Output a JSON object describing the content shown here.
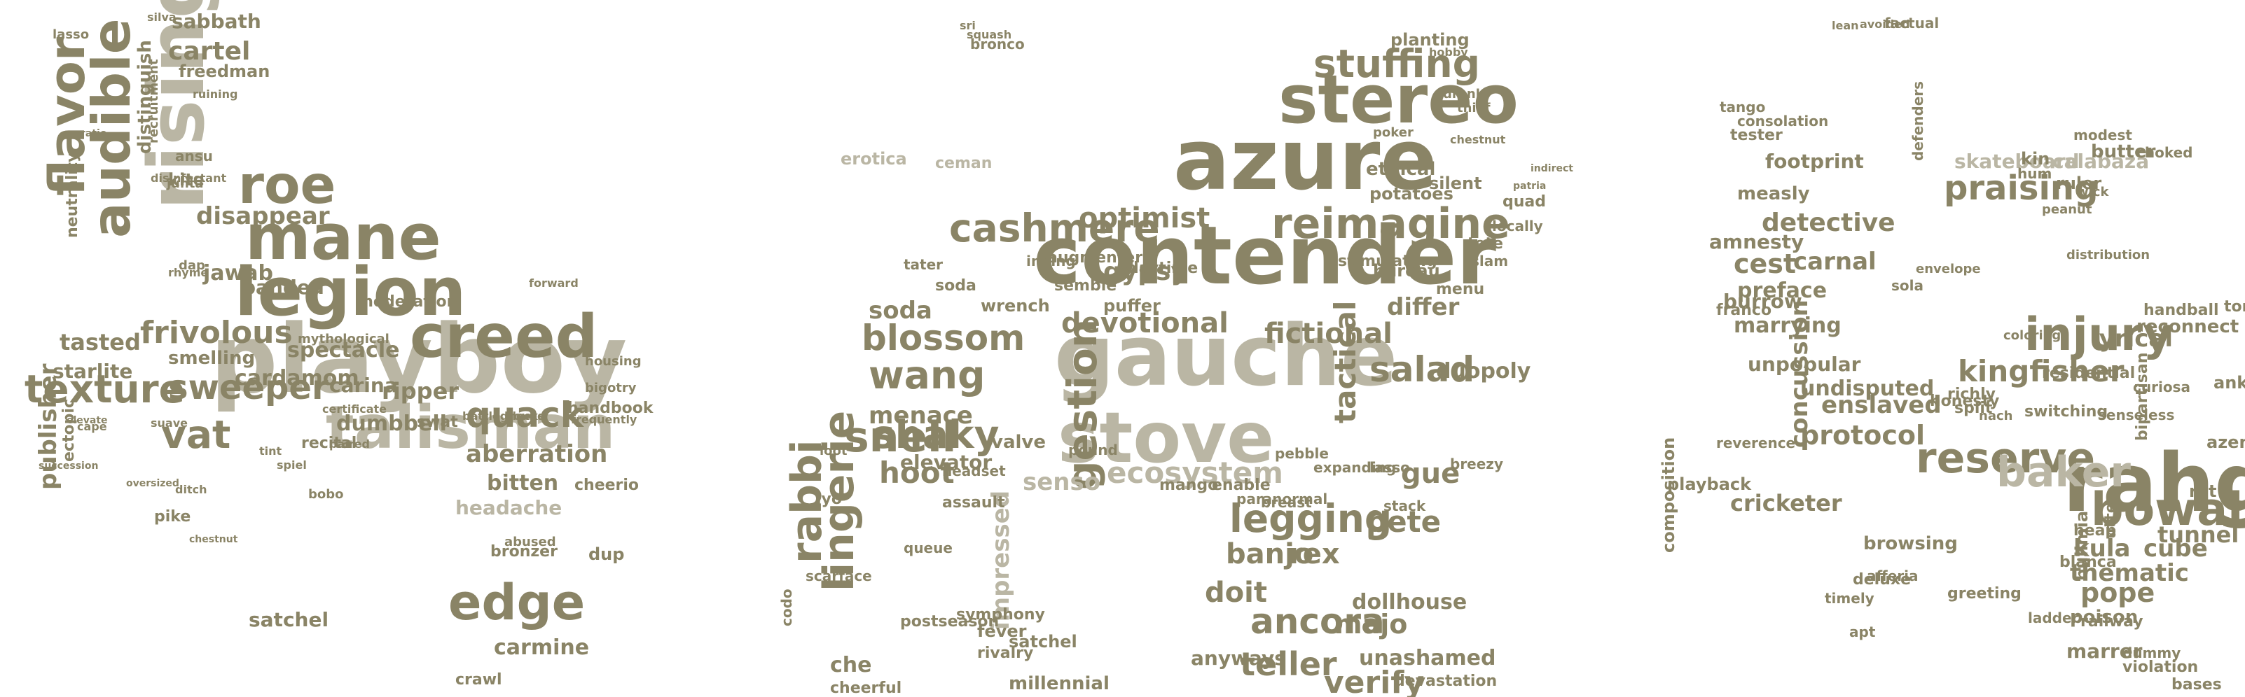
{
  "palette": {
    "dark": "#8a8466",
    "light": "#bab6a4",
    "mid": "#a39e85"
  },
  "clouds": [
    {
      "name": "cloud-left",
      "words": [
        {
          "t": "playboy",
          "tone": "light"
        },
        {
          "t": "legion",
          "tone": "dark"
        },
        {
          "t": "talisman",
          "tone": "light"
        },
        {
          "t": "creed",
          "tone": "dark"
        },
        {
          "t": "mane",
          "tone": "dark"
        },
        {
          "t": "roe",
          "tone": "dark"
        },
        {
          "t": "texture",
          "tone": "dark"
        },
        {
          "t": "rising",
          "tone": "light"
        },
        {
          "t": "audible",
          "tone": "dark"
        },
        {
          "t": "flavor",
          "tone": "dark"
        },
        {
          "t": "vat",
          "tone": "dark"
        },
        {
          "t": "edge",
          "tone": "dark"
        },
        {
          "t": "sweeper",
          "tone": "dark"
        },
        {
          "t": "quack",
          "tone": "dark"
        },
        {
          "t": "aberration",
          "tone": "dark"
        },
        {
          "t": "frivolous",
          "tone": "dark"
        },
        {
          "t": "cartel",
          "tone": "dark"
        },
        {
          "t": "spectacle",
          "tone": "dark"
        },
        {
          "t": "ripper",
          "tone": "dark"
        },
        {
          "t": "bitten",
          "tone": "dark"
        },
        {
          "t": "headache",
          "tone": "light"
        },
        {
          "t": "disappear",
          "tone": "dark"
        },
        {
          "t": "banded",
          "tone": "dark"
        },
        {
          "t": "jawab",
          "tone": "dark"
        },
        {
          "t": "cardamom",
          "tone": "dark"
        },
        {
          "t": "carina",
          "tone": "dark"
        },
        {
          "t": "dumbbell",
          "tone": "dark"
        },
        {
          "t": "tasted",
          "tone": "dark"
        },
        {
          "t": "publisher",
          "tone": "dark"
        },
        {
          "t": "carmine",
          "tone": "dark"
        },
        {
          "t": "sabbath",
          "tone": "dark"
        },
        {
          "t": "distinguish",
          "tone": "dark"
        },
        {
          "t": "starlite",
          "tone": "dark"
        },
        {
          "t": "smelling",
          "tone": "dark"
        },
        {
          "t": "moderation",
          "tone": "dark"
        },
        {
          "t": "kite",
          "tone": "dark"
        },
        {
          "t": "freedman",
          "tone": "dark"
        },
        {
          "t": "handbook",
          "tone": "dark"
        },
        {
          "t": "bronzer",
          "tone": "dark"
        },
        {
          "t": "crawl",
          "tone": "dark"
        },
        {
          "t": "neutrality",
          "tone": "dark"
        },
        {
          "t": "recital",
          "tone": "dark"
        },
        {
          "t": "ectopic",
          "tone": "dark"
        },
        {
          "t": "satchel",
          "tone": "dark"
        },
        {
          "t": "silva",
          "tone": "dark"
        },
        {
          "t": "junta",
          "tone": "dark"
        },
        {
          "t": "bigotry",
          "tone": "dark"
        },
        {
          "t": "housing",
          "tone": "dark"
        },
        {
          "t": "dup",
          "tone": "dark"
        },
        {
          "t": "cheerio",
          "tone": "dark"
        },
        {
          "t": "abused",
          "tone": "dark"
        },
        {
          "t": "pike",
          "tone": "dark"
        },
        {
          "t": "bobo",
          "tone": "dark"
        },
        {
          "t": "swat",
          "tone": "dark"
        },
        {
          "t": "ansu",
          "tone": "dark"
        },
        {
          "t": "lasso",
          "tone": "dark"
        },
        {
          "t": "dap",
          "tone": "dark"
        },
        {
          "t": "paired",
          "tone": "dark"
        },
        {
          "t": "ditch",
          "tone": "dark"
        },
        {
          "t": "tint",
          "tone": "dark"
        },
        {
          "t": "spiel",
          "tone": "dark"
        },
        {
          "t": "cape",
          "tone": "dark"
        },
        {
          "t": "oversized",
          "tone": "dark"
        },
        {
          "t": "chestnut",
          "tone": "dark"
        },
        {
          "t": "mythological",
          "tone": "dark"
        },
        {
          "t": "blocks",
          "tone": "dark"
        },
        {
          "t": "certificate",
          "tone": "dark"
        },
        {
          "t": "ratio",
          "tone": "dark"
        },
        {
          "t": "elevate",
          "tone": "dark"
        },
        {
          "t": "suave",
          "tone": "dark"
        },
        {
          "t": "rhyme",
          "tone": "dark"
        },
        {
          "t": "forward",
          "tone": "dark"
        },
        {
          "t": "battleground",
          "tone": "dark"
        },
        {
          "t": "succession",
          "tone": "dark"
        },
        {
          "t": "disinfectant",
          "tone": "dark"
        },
        {
          "t": "recruitment",
          "tone": "dark"
        },
        {
          "t": "frequently",
          "tone": "dark"
        },
        {
          "t": "ruining",
          "tone": "dark"
        }
      ]
    },
    {
      "name": "cloud-middle",
      "words": [
        {
          "t": "contender",
          "tone": "dark"
        },
        {
          "t": "gauche",
          "tone": "light"
        },
        {
          "t": "azure",
          "tone": "dark"
        },
        {
          "t": "stove",
          "tone": "light"
        },
        {
          "t": "stereo",
          "tone": "dark"
        },
        {
          "t": "reimagine",
          "tone": "dark"
        },
        {
          "t": "cashmere",
          "tone": "dark"
        },
        {
          "t": "legging",
          "tone": "dark"
        },
        {
          "t": "stuffing",
          "tone": "dark"
        },
        {
          "t": "blossom",
          "tone": "dark"
        },
        {
          "t": "optimist",
          "tone": "dark"
        },
        {
          "t": "fictional",
          "tone": "dark"
        },
        {
          "t": "devotional",
          "tone": "dark"
        },
        {
          "t": "gestion",
          "tone": "dark"
        },
        {
          "t": "shaky",
          "tone": "dark"
        },
        {
          "t": "snell",
          "tone": "dark"
        },
        {
          "t": "wang",
          "tone": "dark"
        },
        {
          "t": "rabbi",
          "tone": "dark"
        },
        {
          "t": "lingerie",
          "tone": "dark"
        },
        {
          "t": "hoot",
          "tone": "dark"
        },
        {
          "t": "ecosystem",
          "tone": "light"
        },
        {
          "t": "salad",
          "tone": "dark"
        },
        {
          "t": "tactical",
          "tone": "dark"
        },
        {
          "t": "ancora",
          "tone": "dark"
        },
        {
          "t": "teller",
          "tone": "dark"
        },
        {
          "t": "verify",
          "tone": "dark"
        },
        {
          "t": "banjo",
          "tone": "dark"
        },
        {
          "t": "doit",
          "tone": "dark"
        },
        {
          "t": "rex",
          "tone": "dark"
        },
        {
          "t": "pete",
          "tone": "dark"
        },
        {
          "t": "gue",
          "tone": "dark"
        },
        {
          "t": "majo",
          "tone": "dark"
        },
        {
          "t": "gypsy",
          "tone": "dark"
        },
        {
          "t": "soda",
          "tone": "dark"
        },
        {
          "t": "menace",
          "tone": "dark"
        },
        {
          "t": "senso",
          "tone": "light"
        },
        {
          "t": "elevator",
          "tone": "dark"
        },
        {
          "t": "impressed",
          "tone": "light"
        },
        {
          "t": "differ",
          "tone": "dark"
        },
        {
          "t": "duopoly",
          "tone": "dark"
        },
        {
          "t": "planting",
          "tone": "dark"
        },
        {
          "t": "ethical",
          "tone": "dark"
        },
        {
          "t": "silent",
          "tone": "dark"
        },
        {
          "t": "erotica",
          "tone": "light"
        },
        {
          "t": "bureau",
          "tone": "dark"
        },
        {
          "t": "potatoes",
          "tone": "dark"
        },
        {
          "t": "stimulating",
          "tone": "dark"
        },
        {
          "t": "puffer",
          "tone": "dark"
        },
        {
          "t": "valve",
          "tone": "dark"
        },
        {
          "t": "wrench",
          "tone": "dark"
        },
        {
          "t": "semble",
          "tone": "dark"
        },
        {
          "t": "augmenter",
          "tone": "dark"
        },
        {
          "t": "dollhouse",
          "tone": "dark"
        },
        {
          "t": "unashamed",
          "tone": "dark"
        },
        {
          "t": "anyways",
          "tone": "dark"
        },
        {
          "t": "devastation",
          "tone": "dark"
        },
        {
          "t": "che",
          "tone": "dark"
        },
        {
          "t": "cheerful",
          "tone": "dark"
        },
        {
          "t": "millennial",
          "tone": "dark"
        },
        {
          "t": "satchel",
          "tone": "dark"
        },
        {
          "t": "fever",
          "tone": "dark"
        },
        {
          "t": "rivalry",
          "tone": "dark"
        },
        {
          "t": "postseason",
          "tone": "dark"
        },
        {
          "t": "symphony",
          "tone": "dark"
        },
        {
          "t": "scarface",
          "tone": "dark"
        },
        {
          "t": "codo",
          "tone": "dark"
        },
        {
          "t": "queue",
          "tone": "dark"
        },
        {
          "t": "headset",
          "tone": "dark"
        },
        {
          "t": "assault",
          "tone": "dark"
        },
        {
          "t": "soda",
          "tone": "dark"
        },
        {
          "t": "tater",
          "tone": "dark"
        },
        {
          "t": "inning",
          "tone": "dark"
        },
        {
          "t": "daytime",
          "tone": "dark"
        },
        {
          "t": "pound",
          "tone": "dark"
        },
        {
          "t": "mango",
          "tone": "dark"
        },
        {
          "t": "enable",
          "tone": "dark"
        },
        {
          "t": "paranormal",
          "tone": "dark"
        },
        {
          "t": "breezy",
          "tone": "dark"
        },
        {
          "t": "locally",
          "tone": "dark"
        },
        {
          "t": "menu",
          "tone": "dark"
        },
        {
          "t": "tete",
          "tone": "dark"
        },
        {
          "t": "quad",
          "tone": "dark"
        },
        {
          "t": "slam",
          "tone": "dark"
        },
        {
          "t": "pebble",
          "tone": "dark"
        },
        {
          "t": "expanding",
          "tone": "dark"
        },
        {
          "t": "breast",
          "tone": "dark"
        },
        {
          "t": "lasso",
          "tone": "dark"
        },
        {
          "t": "stack",
          "tone": "dark"
        },
        {
          "t": "iyo",
          "tone": "dark"
        },
        {
          "t": "loot",
          "tone": "dark"
        },
        {
          "t": "bronco",
          "tone": "dark"
        },
        {
          "t": "sri",
          "tone": "dark"
        },
        {
          "t": "squash",
          "tone": "dark"
        },
        {
          "t": "ceman",
          "tone": "light"
        },
        {
          "t": "thief",
          "tone": "dark"
        },
        {
          "t": "drank",
          "tone": "dark"
        },
        {
          "t": "poker",
          "tone": "dark"
        },
        {
          "t": "hobby",
          "tone": "dark"
        },
        {
          "t": "chestnut",
          "tone": "dark"
        },
        {
          "t": "indirect",
          "tone": "dark"
        },
        {
          "t": "patria",
          "tone": "dark"
        },
        {
          "t": "dynamics",
          "tone": "dark"
        }
      ]
    },
    {
      "name": "cloud-right",
      "words": [
        {
          "t": "rahga",
          "tone": "dark"
        },
        {
          "t": "injury",
          "tone": "dark"
        },
        {
          "t": "reserve",
          "tone": "dark"
        },
        {
          "t": "baker",
          "tone": "light"
        },
        {
          "t": "bowalt",
          "tone": "dark"
        },
        {
          "t": "praising",
          "tone": "dark"
        },
        {
          "t": "kingfisher",
          "tone": "dark"
        },
        {
          "t": "detective",
          "tone": "dark"
        },
        {
          "t": "protocol",
          "tone": "dark"
        },
        {
          "t": "cest",
          "tone": "dark"
        },
        {
          "t": "carnal",
          "tone": "dark"
        },
        {
          "t": "enslaved",
          "tone": "dark"
        },
        {
          "t": "thematic",
          "tone": "dark"
        },
        {
          "t": "kula",
          "tone": "dark"
        },
        {
          "t": "cube",
          "tone": "dark"
        },
        {
          "t": "pope",
          "tone": "dark"
        },
        {
          "t": "tunnel",
          "tone": "dark"
        },
        {
          "t": "cricketer",
          "tone": "dark"
        },
        {
          "t": "lyrical",
          "tone": "dark"
        },
        {
          "t": "preface",
          "tone": "dark"
        },
        {
          "t": "amnesty",
          "tone": "dark"
        },
        {
          "t": "footprint",
          "tone": "dark"
        },
        {
          "t": "measly",
          "tone": "dark"
        },
        {
          "t": "marrying",
          "tone": "dark"
        },
        {
          "t": "burrow",
          "tone": "dark"
        },
        {
          "t": "unpopular",
          "tone": "dark"
        },
        {
          "t": "undisputed",
          "tone": "dark"
        },
        {
          "t": "concussion",
          "tone": "dark"
        },
        {
          "t": "skateboard",
          "tone": "light"
        },
        {
          "t": "calabaza",
          "tone": "light"
        },
        {
          "t": "playback",
          "tone": "dark"
        },
        {
          "t": "poison",
          "tone": "dark"
        },
        {
          "t": "marrer",
          "tone": "dark"
        },
        {
          "t": "railway",
          "tone": "dark"
        },
        {
          "t": "browsing",
          "tone": "dark"
        },
        {
          "t": "deluxe",
          "tone": "dark"
        },
        {
          "t": "timely",
          "tone": "dark"
        },
        {
          "t": "reconnect",
          "tone": "dark"
        },
        {
          "t": "handball",
          "tone": "dark"
        },
        {
          "t": "torn",
          "tone": "dark"
        },
        {
          "t": "ankle",
          "tone": "dark"
        },
        {
          "t": "azenda",
          "tone": "dark"
        },
        {
          "t": "rat",
          "tone": "dark"
        },
        {
          "t": "heap",
          "tone": "dark"
        },
        {
          "t": "blanca",
          "tone": "dark"
        },
        {
          "t": "violation",
          "tone": "dark"
        },
        {
          "t": "bases",
          "tone": "dark"
        },
        {
          "t": "dummy",
          "tone": "dark"
        },
        {
          "t": "split",
          "tone": "dark"
        },
        {
          "t": "richly",
          "tone": "dark"
        },
        {
          "t": "kin",
          "tone": "dark"
        },
        {
          "t": "ruler",
          "tone": "dark"
        },
        {
          "t": "butter",
          "tone": "dark"
        },
        {
          "t": "hum",
          "tone": "dark"
        },
        {
          "t": "modest",
          "tone": "dark"
        },
        {
          "t": "tester",
          "tone": "dark"
        },
        {
          "t": "consolation",
          "tone": "dark"
        },
        {
          "t": "tango",
          "tone": "dark"
        },
        {
          "t": "franco",
          "tone": "dark"
        },
        {
          "t": "wick",
          "tone": "dark"
        },
        {
          "t": "peanut",
          "tone": "dark"
        },
        {
          "t": "choked",
          "tone": "dark"
        },
        {
          "t": "factual",
          "tone": "dark"
        },
        {
          "t": "avoided",
          "tone": "dark"
        },
        {
          "t": "lean",
          "tone": "dark"
        },
        {
          "t": "reverence",
          "tone": "dark"
        },
        {
          "t": "residential",
          "tone": "dark"
        },
        {
          "t": "switching",
          "tone": "dark"
        },
        {
          "t": "honesty",
          "tone": "dark"
        },
        {
          "t": "greeting",
          "tone": "dark"
        },
        {
          "t": "senseless",
          "tone": "dark"
        },
        {
          "t": "curiosa",
          "tone": "dark"
        },
        {
          "t": "utter",
          "tone": "dark"
        },
        {
          "t": "bulimia",
          "tone": "dark"
        },
        {
          "t": "afferia",
          "tone": "dark"
        },
        {
          "t": "apt",
          "tone": "dark"
        },
        {
          "t": "nach",
          "tone": "dark"
        },
        {
          "t": "sola",
          "tone": "dark"
        },
        {
          "t": "envelope",
          "tone": "dark"
        },
        {
          "t": "coloring",
          "tone": "dark"
        },
        {
          "t": "bipartisan",
          "tone": "dark"
        },
        {
          "t": "distribution",
          "tone": "dark"
        },
        {
          "t": "ladder",
          "tone": "dark"
        },
        {
          "t": "defenders",
          "tone": "dark"
        },
        {
          "t": "composition",
          "tone": "dark"
        },
        {
          "t": "biography",
          "tone": "dark"
        }
      ]
    }
  ]
}
